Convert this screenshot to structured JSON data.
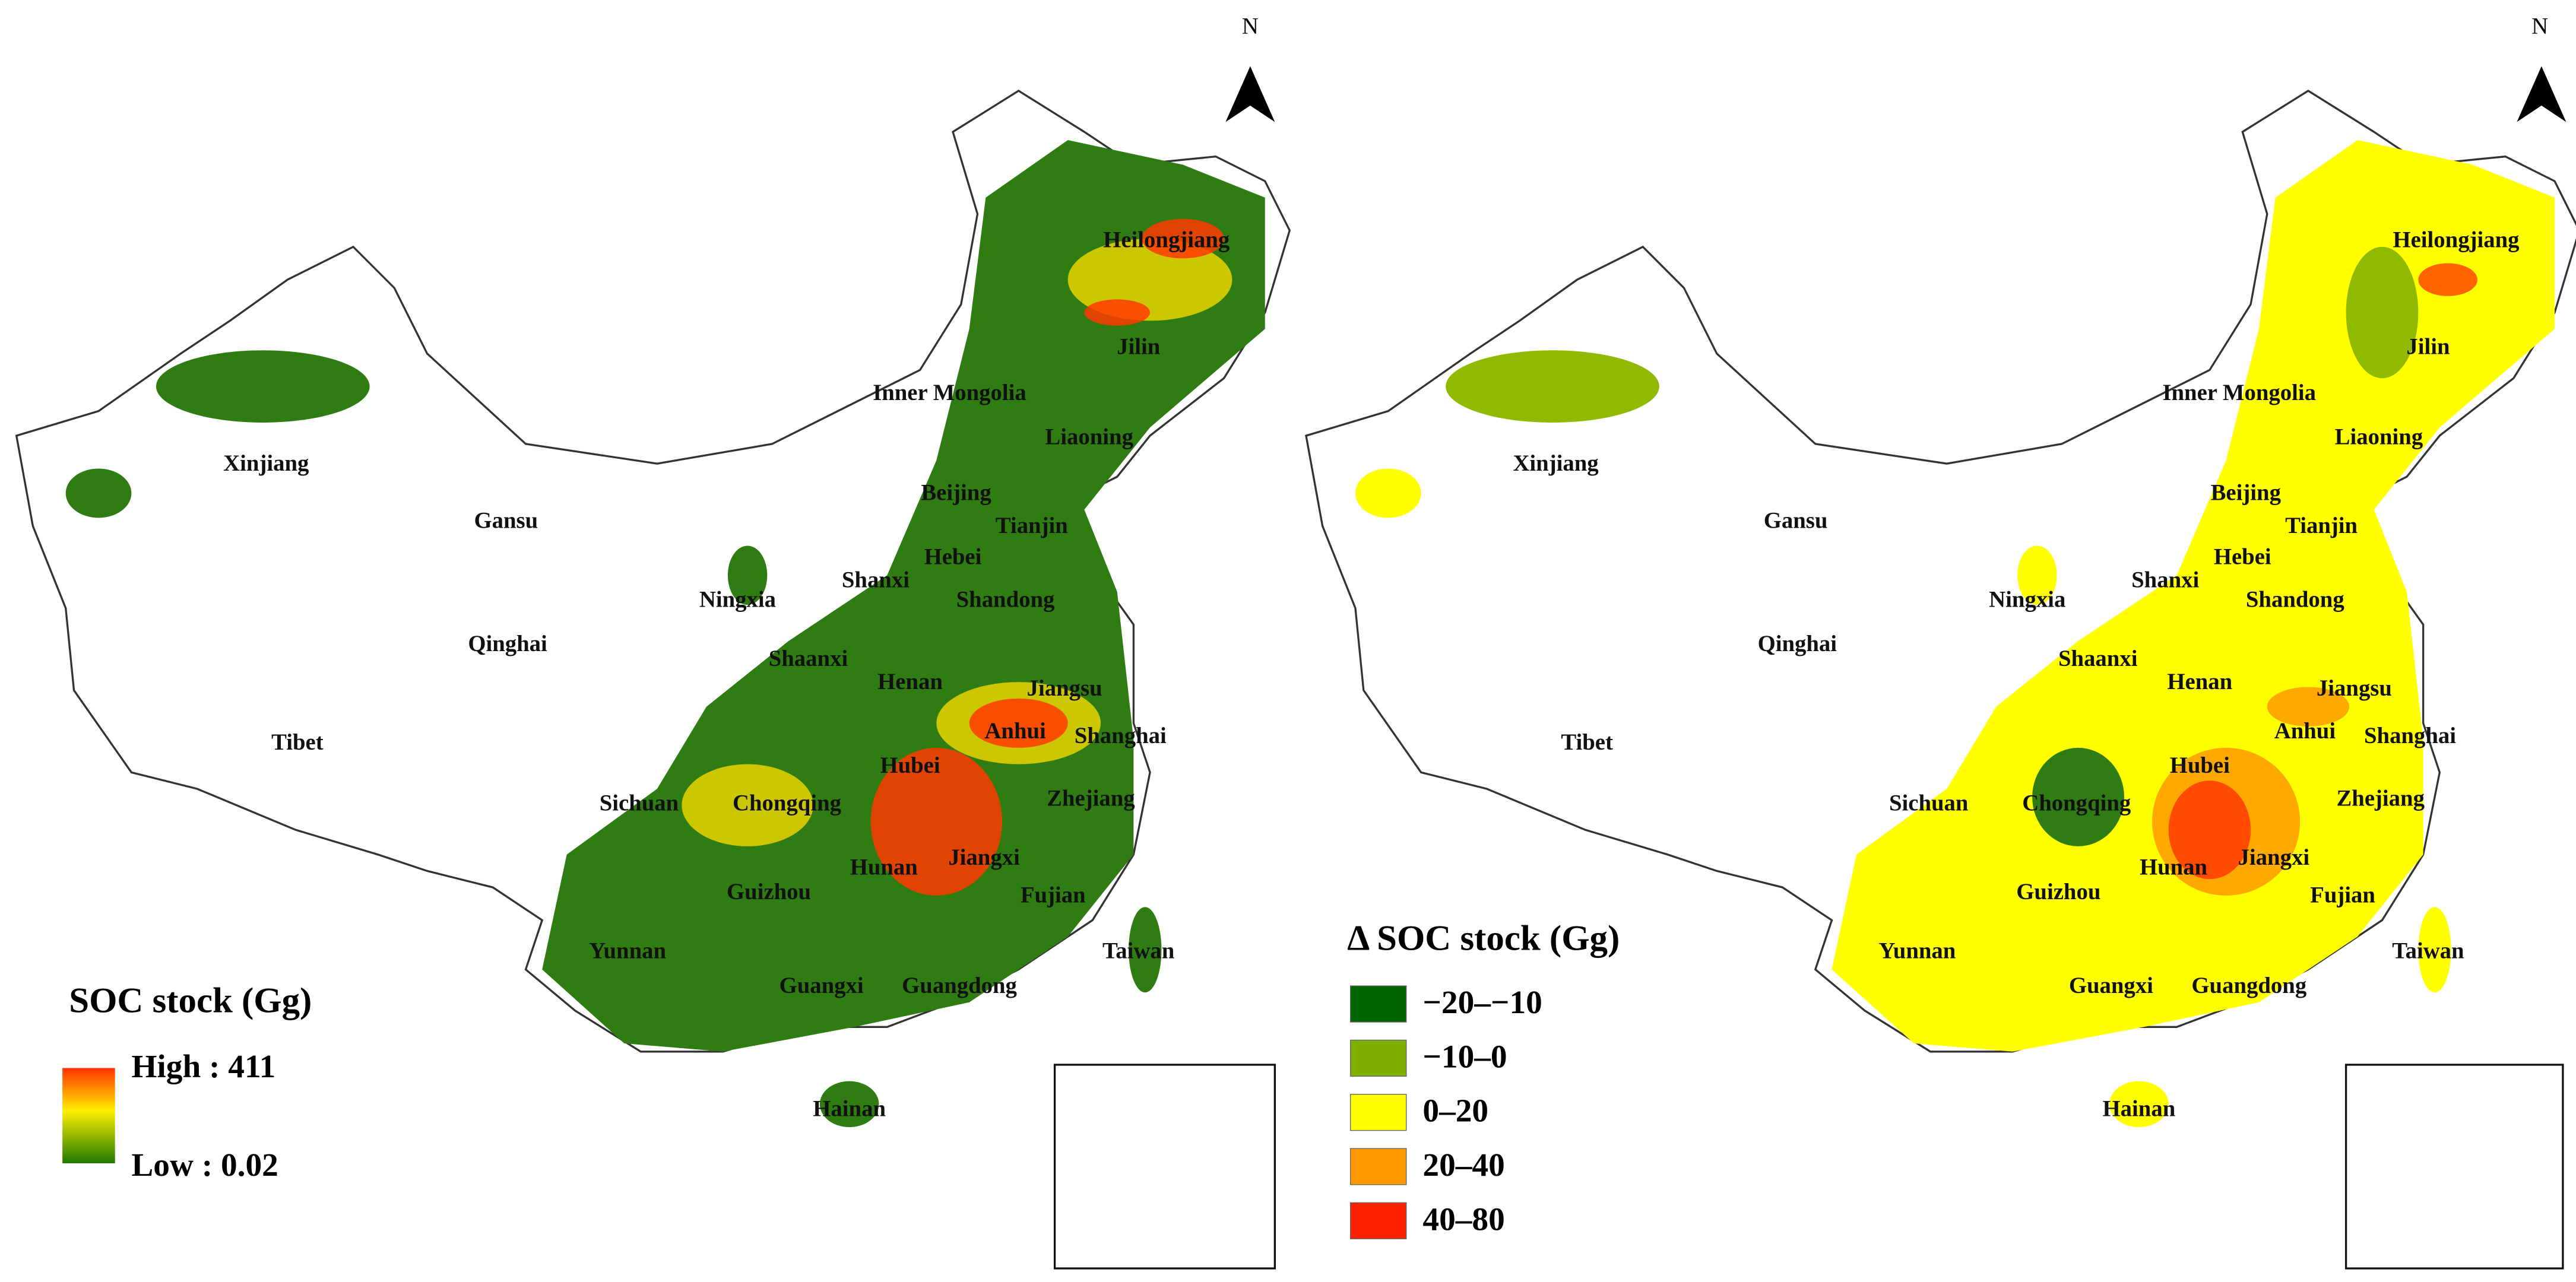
{
  "north": "N",
  "maps": [
    {
      "provinces": [
        "Heilongjiang",
        "Jilin",
        "Inner Mongolia",
        "Liaoning",
        "Xinjiang",
        "Beijing",
        "Tianjin",
        "Gansu",
        "Hebei",
        "Shanxi",
        "Ningxia",
        "Shandong",
        "Qinghai",
        "Shaanxi",
        "Henan",
        "Jiangsu",
        "Anhui",
        "Shanghai",
        "Tibet",
        "Hubei",
        "Sichuan",
        "Chongqing",
        "Zhejiang",
        "Jiangxi",
        "Hunan",
        "Fujian",
        "Guizhou",
        "Yunnan",
        "Taiwan",
        "Guangxi",
        "Guangdong",
        "Hainan"
      ],
      "legend": {
        "title": "SOC stock (Gg)",
        "high": "High : 411",
        "low": "Low : 0.02"
      }
    },
    {
      "provinces": [
        "Heilongjiang",
        "Jilin",
        "Inner Mongolia",
        "Liaoning",
        "Xinjiang",
        "Beijing",
        "Tianjin",
        "Gansu",
        "Hebei",
        "Shanxi",
        "Ningxia",
        "Shandong",
        "Qinghai",
        "Shaanxi",
        "Henan",
        "Jiangsu",
        "Anhui",
        "Shanghai",
        "Tibet",
        "Hubei",
        "Sichuan",
        "Chongqing",
        "Zhejiang",
        "Jiangxi",
        "Hunan",
        "Fujian",
        "Guizhou",
        "Yunnan",
        "Taiwan",
        "Guangxi",
        "Guangdong",
        "Hainan"
      ],
      "legend": {
        "title": "Δ SOC stock (Gg)",
        "classes": [
          {
            "label": "−20–−10",
            "color": "#006400"
          },
          {
            "label": "−10–0",
            "color": "#7fb000"
          },
          {
            "label": "0–20",
            "color": "#ffff00"
          },
          {
            "label": "20–40",
            "color": "#ff9900"
          },
          {
            "label": "40–80",
            "color": "#ff2200"
          }
        ]
      }
    }
  ]
}
